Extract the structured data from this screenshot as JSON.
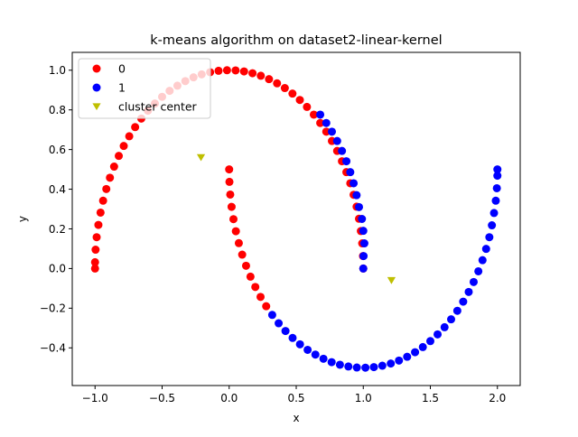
{
  "chart_data": {
    "type": "scatter",
    "title": "k-means algorithm on dataset2-linear-kernel",
    "xlabel": "x",
    "ylabel": "y",
    "xlim": [
      -1.17,
      2.17
    ],
    "ylim": [
      -0.59,
      1.09
    ],
    "x_ticks": [
      -1.0,
      -0.5,
      0.0,
      0.5,
      1.0,
      1.5,
      2.0
    ],
    "x_tick_labels": [
      "−1.0",
      "−0.5",
      "0.0",
      "0.5",
      "1.0",
      "1.5",
      "2.0"
    ],
    "y_ticks": [
      -0.4,
      -0.2,
      0.0,
      0.2,
      0.4,
      0.6,
      0.8,
      1.0
    ],
    "y_tick_labels": [
      "−0.4",
      "−0.2",
      "0.0",
      "0.2",
      "0.4",
      "0.6",
      "0.8",
      "1.0"
    ],
    "grid": false,
    "legend_position": "top-left",
    "legend": [
      {
        "label": "0",
        "marker": "circle",
        "color": "#ff0000"
      },
      {
        "label": "1",
        "marker": "circle",
        "color": "#0000ff"
      },
      {
        "label": "cluster center",
        "marker": "triangle-down",
        "color": "#bfbf00"
      }
    ],
    "series": [
      {
        "name": "0",
        "color": "#ff0000",
        "marker": "circle",
        "points": [
          [
            1.0,
            0.0
          ],
          [
            0.998,
            0.063
          ],
          [
            0.992,
            0.127
          ],
          [
            0.982,
            0.189
          ],
          [
            0.968,
            0.251
          ],
          [
            0.95,
            0.312
          ],
          [
            0.928,
            0.372
          ],
          [
            0.903,
            0.43
          ],
          [
            0.874,
            0.486
          ],
          [
            0.841,
            0.541
          ],
          [
            0.805,
            0.593
          ],
          [
            0.766,
            0.643
          ],
          [
            0.724,
            0.69
          ],
          [
            0.679,
            0.734
          ],
          [
            0.631,
            0.776
          ],
          [
            0.58,
            0.815
          ],
          [
            0.527,
            0.85
          ],
          [
            0.472,
            0.882
          ],
          [
            0.415,
            0.91
          ],
          [
            0.357,
            0.934
          ],
          [
            0.297,
            0.955
          ],
          [
            0.236,
            0.972
          ],
          [
            0.174,
            0.985
          ],
          [
            0.111,
            0.994
          ],
          [
            0.048,
            0.999
          ],
          [
            -0.016,
            1.0
          ],
          [
            -0.079,
            0.997
          ],
          [
            -0.142,
            0.99
          ],
          [
            -0.205,
            0.979
          ],
          [
            -0.266,
            0.964
          ],
          [
            -0.327,
            0.945
          ],
          [
            -0.386,
            0.922
          ],
          [
            -0.444,
            0.896
          ],
          [
            -0.5,
            0.866
          ],
          [
            -0.554,
            0.832
          ],
          [
            -0.606,
            0.796
          ],
          [
            -0.655,
            0.756
          ],
          [
            -0.701,
            0.713
          ],
          [
            -0.745,
            0.667
          ],
          [
            -0.786,
            0.618
          ],
          [
            -0.823,
            0.568
          ],
          [
            -0.858,
            0.514
          ],
          [
            -0.889,
            0.458
          ],
          [
            -0.916,
            0.401
          ],
          [
            -0.94,
            0.342
          ],
          [
            -0.959,
            0.282
          ],
          [
            -0.975,
            0.22
          ],
          [
            -0.988,
            0.158
          ],
          [
            -0.996,
            0.095
          ],
          [
            -1.0,
            0.032
          ],
          [
            -1.0,
            0.0
          ],
          [
            0.0,
            0.5
          ],
          [
            0.002,
            0.437
          ],
          [
            0.008,
            0.373
          ],
          [
            0.018,
            0.311
          ],
          [
            0.032,
            0.249
          ],
          [
            0.05,
            0.188
          ],
          [
            0.072,
            0.128
          ],
          [
            0.097,
            0.07
          ],
          [
            0.126,
            0.014
          ],
          [
            0.159,
            -0.041
          ],
          [
            0.195,
            -0.093
          ],
          [
            0.234,
            -0.143
          ],
          [
            0.276,
            -0.19
          ]
        ]
      },
      {
        "name": "1",
        "color": "#0000ff",
        "marker": "circle",
        "points": [
          [
            0.321,
            -0.234
          ],
          [
            0.369,
            -0.276
          ],
          [
            0.42,
            -0.315
          ],
          [
            0.473,
            -0.35
          ],
          [
            0.528,
            -0.382
          ],
          [
            0.585,
            -0.41
          ],
          [
            0.643,
            -0.434
          ],
          [
            0.703,
            -0.455
          ],
          [
            0.764,
            -0.472
          ],
          [
            0.826,
            -0.485
          ],
          [
            0.889,
            -0.494
          ],
          [
            0.952,
            -0.499
          ],
          [
            1.016,
            -0.5
          ],
          [
            1.079,
            -0.497
          ],
          [
            1.142,
            -0.49
          ],
          [
            1.205,
            -0.479
          ],
          [
            1.266,
            -0.464
          ],
          [
            1.327,
            -0.445
          ],
          [
            1.386,
            -0.422
          ],
          [
            1.444,
            -0.396
          ],
          [
            1.5,
            -0.366
          ],
          [
            1.554,
            -0.332
          ],
          [
            1.606,
            -0.296
          ],
          [
            1.655,
            -0.256
          ],
          [
            1.701,
            -0.213
          ],
          [
            1.745,
            -0.167
          ],
          [
            1.786,
            -0.118
          ],
          [
            1.823,
            -0.068
          ],
          [
            1.858,
            -0.014
          ],
          [
            1.889,
            0.042
          ],
          [
            1.916,
            0.099
          ],
          [
            1.94,
            0.158
          ],
          [
            1.959,
            0.218
          ],
          [
            1.975,
            0.28
          ],
          [
            1.988,
            0.342
          ],
          [
            1.996,
            0.405
          ],
          [
            2.0,
            0.468
          ],
          [
            2.0,
            0.5
          ],
          [
            1.0,
            0.0
          ],
          [
            1.002,
            0.063
          ],
          [
            1.008,
            0.127
          ],
          [
            1.0,
            0.19
          ],
          [
            0.99,
            0.25
          ],
          [
            0.968,
            0.31
          ],
          [
            0.95,
            0.37
          ],
          [
            0.928,
            0.43
          ],
          [
            0.903,
            0.486
          ],
          [
            0.874,
            0.541
          ],
          [
            0.841,
            0.593
          ],
          [
            0.805,
            0.643
          ],
          [
            0.766,
            0.69
          ],
          [
            0.724,
            0.734
          ],
          [
            0.679,
            0.776
          ]
        ]
      },
      {
        "name": "cluster center",
        "color": "#bfbf00",
        "marker": "triangle-down",
        "points": [
          [
            -0.21,
            0.56
          ],
          [
            1.21,
            -0.06
          ]
        ]
      }
    ]
  }
}
